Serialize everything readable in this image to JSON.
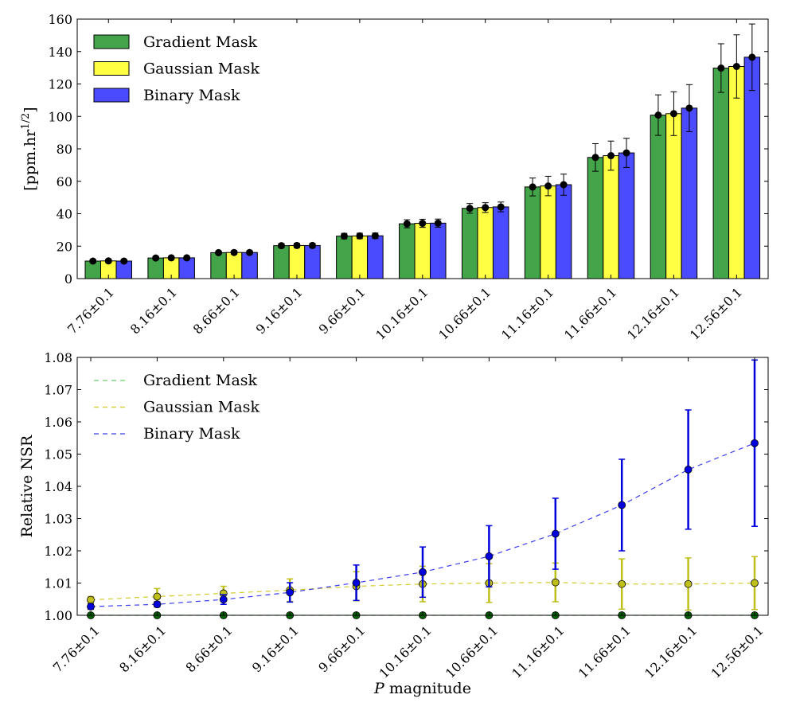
{
  "colors": {
    "gradient": "#44a44a",
    "gaussian": "#ffff44",
    "binary": "#4a4aff",
    "gradient_line": "#6ccf6c",
    "gaussian_line": "#d2cc2c",
    "binary_line": "#3d3df2",
    "binary_point": "#0000dd",
    "gaussian_point": "#bfbf1a",
    "gradient_point": "#006400"
  },
  "chart_data": [
    {
      "type": "bar",
      "categories": [
        "7.76±0.1",
        "8.16±0.1",
        "8.66±0.1",
        "9.16±0.1",
        "9.66±0.1",
        "10.16±0.1",
        "10.66±0.1",
        "11.16±0.1",
        "11.66±0.1",
        "12.16±0.1",
        "12.56±0.1"
      ],
      "series": [
        {
          "name": "Gradient Mask",
          "values": [
            10.8,
            12.7,
            16.0,
            20.3,
            26.2,
            33.8,
            43.3,
            56.5,
            74.7,
            100.8,
            129.8
          ],
          "errors": [
            1,
            1,
            1,
            1.3,
            1.7,
            2.5,
            3,
            5.5,
            8.5,
            12.5,
            15
          ]
        },
        {
          "name": "Gaussian Mask",
          "values": [
            10.9,
            12.8,
            16.1,
            20.4,
            26.3,
            34.1,
            43.8,
            57.1,
            75.8,
            101.7,
            130.8
          ],
          "errors": [
            1,
            1,
            1,
            1.3,
            1.7,
            2.5,
            3,
            6,
            9,
            13.5,
            19.5
          ]
        },
        {
          "name": "Binary Mask",
          "values": [
            10.8,
            12.8,
            16.1,
            20.4,
            26.4,
            34.2,
            44.2,
            57.9,
            77.5,
            105.1,
            136.5
          ],
          "errors": [
            1,
            1,
            1,
            1.3,
            1.7,
            2.5,
            3,
            6.5,
            9,
            14.5,
            20.5
          ]
        }
      ],
      "title": "",
      "xlabel": "",
      "ylabel": "[ppm.hr¹ᐟ²]",
      "ylabel_parts": {
        "base": "[ppm.hr",
        "sup": "1/2",
        "close": "]"
      },
      "ylim": [
        0,
        160
      ],
      "yticks": [
        "0",
        "20",
        "40",
        "60",
        "80",
        "100",
        "120",
        "140",
        "160"
      ],
      "legend": [
        "Gradient Mask",
        "Gaussian Mask",
        "Binary Mask"
      ],
      "legend_position": "top-left"
    },
    {
      "type": "line",
      "categories": [
        "7.76±0.1",
        "8.16±0.1",
        "8.66±0.1",
        "9.16±0.1",
        "9.66±0.1",
        "10.16±0.1",
        "10.66±0.1",
        "11.16±0.1",
        "11.66±0.1",
        "12.16±0.1",
        "12.56±0.1"
      ],
      "series": [
        {
          "name": "Gradient Mask",
          "values": [
            1.0,
            1.0,
            1.0,
            1.0,
            1.0,
            1.0,
            1.0,
            1.0,
            1.0,
            1.0,
            1.0
          ],
          "errors": [
            0,
            0,
            0,
            0,
            0,
            0,
            0,
            0,
            0,
            0,
            0
          ]
        },
        {
          "name": "Gaussian Mask",
          "values": [
            1.0048,
            1.0058,
            1.0068,
            1.0078,
            1.009,
            1.0097,
            1.01,
            1.0102,
            1.0097,
            1.0097,
            1.01
          ],
          "errors": [
            0.001,
            0.0025,
            0.0022,
            0.0035,
            0.0045,
            0.0055,
            0.006,
            0.006,
            0.0078,
            0.0081,
            0.0082
          ]
        },
        {
          "name": "Binary Mask",
          "values": [
            1.0027,
            1.0034,
            1.0049,
            1.0071,
            1.0101,
            1.0134,
            1.0183,
            1.0253,
            1.0342,
            1.0452,
            1.0534
          ],
          "errors": [
            0.0008,
            0.0008,
            0.0015,
            0.003,
            0.0055,
            0.0078,
            0.0095,
            0.011,
            0.0142,
            0.0185,
            0.0258
          ]
        }
      ],
      "title": "",
      "xlabel": "P magnitude",
      "xlabel_parts": {
        "var": "P",
        "rest": " magnitude"
      },
      "ylabel": "Relative NSR",
      "ylim": [
        1.0,
        1.08
      ],
      "yticks": [
        "1.00",
        "1.01",
        "1.02",
        "1.03",
        "1.04",
        "1.05",
        "1.06",
        "1.07",
        "1.08"
      ],
      "legend": [
        "Gradient Mask",
        "Gaussian Mask",
        "Binary Mask"
      ],
      "legend_position": "top-left"
    }
  ]
}
